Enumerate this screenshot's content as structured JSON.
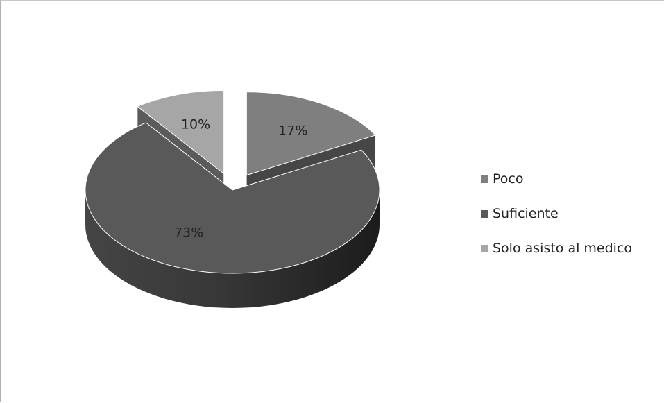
{
  "chart_data": {
    "type": "pie",
    "title": "",
    "categories": [
      "Poco",
      "Suficiente",
      "Solo asisto al medico"
    ],
    "values": [
      17,
      73,
      10
    ],
    "labels": [
      "17%",
      "73%",
      "10%"
    ],
    "colors": [
      "#7f7f7f",
      "#595959",
      "#a6a6a6"
    ],
    "exploded": [
      true,
      false,
      true
    ],
    "three_d": true,
    "legend_position": "right"
  }
}
